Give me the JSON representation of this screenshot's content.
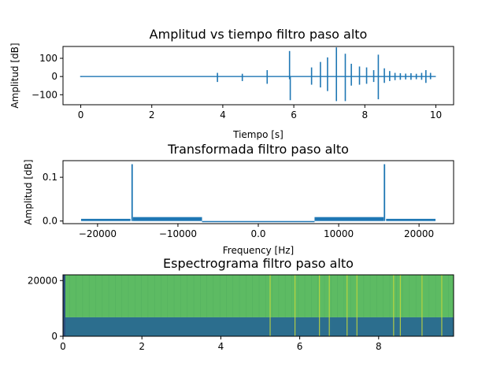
{
  "chart_data": [
    {
      "type": "line",
      "title": "Amplitud vs tiempo filtro paso alto",
      "xlabel": "Tiempo [s]",
      "ylabel": "Amplitud [dB]",
      "xlim": [
        -0.5,
        10.5
      ],
      "ylim": [
        -155,
        165
      ],
      "xticks": [
        0,
        2,
        4,
        6,
        8,
        10
      ],
      "yticks": [
        100,
        0,
        -100
      ],
      "line_color": "#1f77b4",
      "baseline_amplitude": 3,
      "bursts": [
        {
          "t": 0.0,
          "max": 3,
          "min": -3
        },
        {
          "t": 3.85,
          "max": 20,
          "min": -30
        },
        {
          "t": 4.55,
          "max": 15,
          "min": -25
        },
        {
          "t": 5.25,
          "max": 35,
          "min": -40
        },
        {
          "t": 5.88,
          "max": 140,
          "min": -15
        },
        {
          "t": 5.9,
          "max": 0,
          "min": -130
        },
        {
          "t": 6.5,
          "max": 50,
          "min": -45
        },
        {
          "t": 6.75,
          "max": 80,
          "min": -60
        },
        {
          "t": 6.95,
          "max": 105,
          "min": -80
        },
        {
          "t": 7.2,
          "max": 160,
          "min": -135
        },
        {
          "t": 7.45,
          "max": 125,
          "min": -135
        },
        {
          "t": 7.62,
          "max": 70,
          "min": -50
        },
        {
          "t": 7.85,
          "max": 55,
          "min": -45
        },
        {
          "t": 8.05,
          "max": 50,
          "min": -40
        },
        {
          "t": 8.25,
          "max": 35,
          "min": -30
        },
        {
          "t": 8.38,
          "max": 120,
          "min": -125
        },
        {
          "t": 8.55,
          "max": 45,
          "min": -35
        },
        {
          "t": 8.7,
          "max": 30,
          "min": -25
        },
        {
          "t": 8.85,
          "max": 20,
          "min": -20
        },
        {
          "t": 9.0,
          "max": 18,
          "min": -18
        },
        {
          "t": 9.15,
          "max": 16,
          "min": -16
        },
        {
          "t": 9.3,
          "max": 18,
          "min": -18
        },
        {
          "t": 9.45,
          "max": 15,
          "min": -15
        },
        {
          "t": 9.6,
          "max": 20,
          "min": -18
        },
        {
          "t": 9.72,
          "max": 35,
          "min": -35
        },
        {
          "t": 9.85,
          "max": 20,
          "min": -15
        }
      ]
    },
    {
      "type": "line",
      "title": "Transformada filtro paso alto",
      "xlabel": "Frequency [Hz]",
      "ylabel": "Amplitud [dB]",
      "xlim": [
        -24300,
        24300
      ],
      "ylim": [
        -0.006,
        0.138
      ],
      "xticks": [
        -20000,
        -10000,
        0,
        10000,
        20000
      ],
      "yticks": [
        0.1,
        0.0
      ],
      "line_color": "#1f77b4",
      "noise_bands": [
        {
          "from": -22050,
          "to": -15900,
          "level": 0.005
        },
        {
          "from": -15600,
          "to": -7000,
          "level": 0.009
        },
        {
          "from": -7000,
          "to": 7000,
          "level": 0.0
        },
        {
          "from": 7000,
          "to": 15600,
          "level": 0.009
        },
        {
          "from": 15900,
          "to": 22050,
          "level": 0.005
        }
      ],
      "peaks": [
        {
          "x": -15700,
          "y": 0.13
        },
        {
          "x": 15700,
          "y": 0.13
        }
      ]
    },
    {
      "type": "heatmap",
      "title": "Espectrograma filtro paso alto",
      "xlim": [
        0,
        9.9
      ],
      "ylim": [
        0,
        22050
      ],
      "xticks": [
        0,
        2,
        4,
        6,
        8
      ],
      "yticks": [
        20000,
        0
      ],
      "cutoff_frequency": 6800,
      "colors": {
        "high_band": "#5dbb63",
        "low_band": "#2c6e8e",
        "bright_line": "#c8d93a"
      },
      "vertical_lines": [
        5.25,
        5.88,
        6.5,
        6.75,
        7.2,
        7.45,
        8.38,
        8.55,
        9.1,
        9.6
      ]
    }
  ]
}
